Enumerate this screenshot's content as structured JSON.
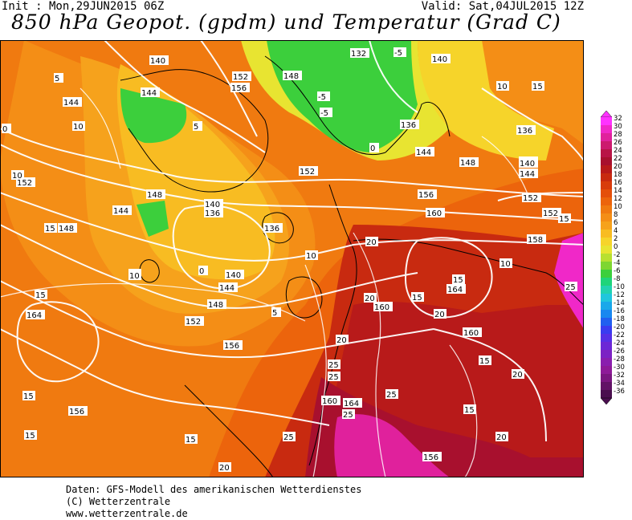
{
  "header": {
    "init": "Init : Mon,29JUN2015 06Z",
    "valid": "Valid: Sat,04JUL2015 12Z",
    "title": "850 hPa Geopot. (gpdm) und Temperatur (Grad C)"
  },
  "legend": {
    "values": [
      "32",
      "30",
      "28",
      "26",
      "24",
      "22",
      "20",
      "18",
      "16",
      "14",
      "12",
      "10",
      "8",
      "6",
      "4",
      "2",
      "0",
      "-2",
      "-4",
      "-6",
      "-8",
      "-10",
      "-12",
      "-14",
      "-16",
      "-18",
      "-20",
      "-22",
      "-24",
      "-26",
      "-28",
      "-30",
      "-32",
      "-34",
      "-36"
    ],
    "colors": [
      "#ff33ff",
      "#f028c8",
      "#e0219c",
      "#cc1a6e",
      "#b81446",
      "#a8102e",
      "#b81a1a",
      "#c82a10",
      "#d83c0c",
      "#e44f0a",
      "#ec640c",
      "#f07a10",
      "#f48e16",
      "#f6a21c",
      "#f8bc22",
      "#f6d42a",
      "#e8e431",
      "#b8e030",
      "#7ed631",
      "#3ccf3c",
      "#1fd47a",
      "#22d2b0",
      "#20c6dc",
      "#1aa8ea",
      "#1888f0",
      "#2060f0",
      "#3a3cf0",
      "#5630e6",
      "#6c28d6",
      "#7c22c4",
      "#8a1eae",
      "#8e1a98",
      "#7a1680",
      "#621266",
      "#4a0e4e"
    ]
  },
  "map": {
    "geopotential_labels": [
      {
        "text": "140"
      },
      {
        "text": "144"
      },
      {
        "text": "152"
      },
      {
        "text": "148"
      },
      {
        "text": "156"
      },
      {
        "text": "132"
      },
      {
        "text": "140"
      },
      {
        "text": "136"
      },
      {
        "text": "144"
      },
      {
        "text": "148"
      },
      {
        "text": "152"
      },
      {
        "text": "144"
      },
      {
        "text": "148"
      },
      {
        "text": "140"
      },
      {
        "text": "136"
      },
      {
        "text": "136"
      },
      {
        "text": "140"
      },
      {
        "text": "144"
      },
      {
        "text": "148"
      },
      {
        "text": "152"
      },
      {
        "text": "156"
      },
      {
        "text": "152"
      },
      {
        "text": "156"
      },
      {
        "text": "160"
      },
      {
        "text": "156"
      },
      {
        "text": "164"
      },
      {
        "text": "160"
      },
      {
        "text": "160"
      },
      {
        "text": "164"
      },
      {
        "text": "164"
      },
      {
        "text": "160"
      },
      {
        "text": "156"
      },
      {
        "text": "152"
      },
      {
        "text": "148"
      },
      {
        "text": "144"
      },
      {
        "text": "140"
      },
      {
        "text": "136"
      },
      {
        "text": "158"
      },
      {
        "text": "152"
      },
      {
        "text": "140"
      },
      {
        "text": "144"
      }
    ],
    "temperature_labels": [
      {
        "text": "5"
      },
      {
        "text": "0"
      },
      {
        "text": "10"
      },
      {
        "text": "10"
      },
      {
        "text": "-5"
      },
      {
        "text": "-5"
      },
      {
        "text": "-5"
      },
      {
        "text": "0"
      },
      {
        "text": "5"
      },
      {
        "text": "10"
      },
      {
        "text": "15"
      },
      {
        "text": "15"
      },
      {
        "text": "15"
      },
      {
        "text": "15"
      },
      {
        "text": "20"
      },
      {
        "text": "20"
      },
      {
        "text": "20"
      },
      {
        "text": "25"
      },
      {
        "text": "25"
      },
      {
        "text": "25"
      },
      {
        "text": "20"
      },
      {
        "text": "25"
      },
      {
        "text": "25"
      },
      {
        "text": "20"
      },
      {
        "text": "15"
      },
      {
        "text": "15"
      },
      {
        "text": "20"
      },
      {
        "text": "15"
      },
      {
        "text": "10"
      },
      {
        "text": "15"
      },
      {
        "text": "15"
      },
      {
        "text": "10"
      },
      {
        "text": "5"
      },
      {
        "text": "0"
      },
      {
        "text": "10"
      },
      {
        "text": "15"
      },
      {
        "text": "20"
      },
      {
        "text": "25"
      },
      {
        "text": "10"
      },
      {
        "text": "15"
      }
    ]
  },
  "footer": {
    "line1": "Daten: GFS-Modell des amerikanischen Wetterdienstes",
    "line2": "(C) Wetterzentrale",
    "line3": "www.wetterzentrale.de"
  }
}
